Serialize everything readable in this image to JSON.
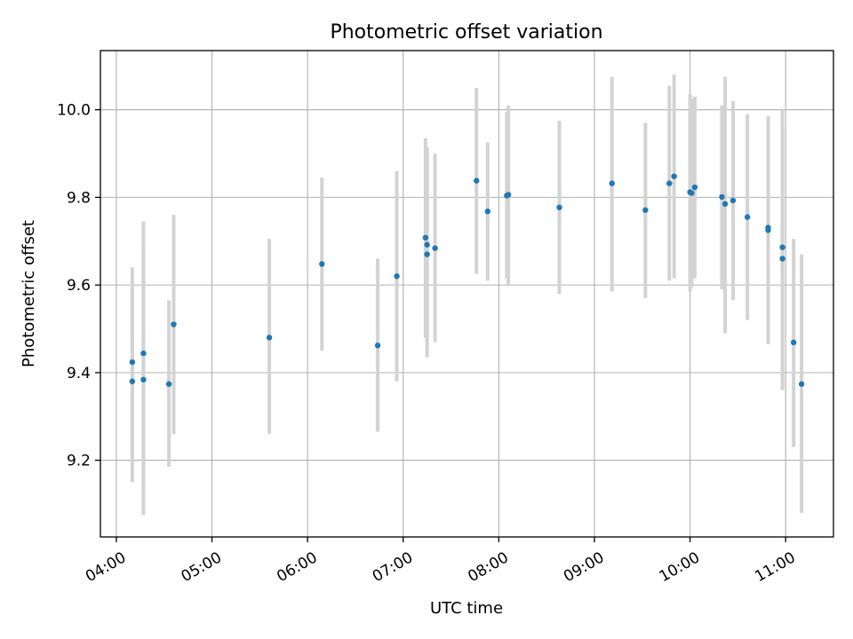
{
  "chart_data": {
    "type": "scatter",
    "title": "Photometric offset variation",
    "xlabel": "UTC time",
    "ylabel": "Photometric offset",
    "xlim": [
      "03:50",
      "11:30"
    ],
    "ylim": [
      9.025,
      10.135
    ],
    "xticks": [
      "04:00",
      "05:00",
      "06:00",
      "07:00",
      "08:00",
      "09:00",
      "10:00",
      "11:00"
    ],
    "yticks": [
      9.2,
      9.4,
      9.6,
      9.8,
      10.0
    ],
    "grid": true,
    "point_color": "#1f77b4",
    "errorbar_color": "#d3d3d3",
    "points": [
      {
        "x": "04:10",
        "y": 9.424,
        "ylow": 9.21,
        "yhigh": 9.64
      },
      {
        "x": "04:10",
        "y": 9.38,
        "ylow": 9.15,
        "yhigh": 9.61
      },
      {
        "x": "04:17",
        "y": 9.444,
        "ylow": 9.14,
        "yhigh": 9.745
      },
      {
        "x": "04:17",
        "y": 9.384,
        "ylow": 9.075,
        "yhigh": 9.69
      },
      {
        "x": "04:33",
        "y": 9.374,
        "ylow": 9.185,
        "yhigh": 9.565
      },
      {
        "x": "04:36",
        "y": 9.51,
        "ylow": 9.26,
        "yhigh": 9.76
      },
      {
        "x": "05:36",
        "y": 9.48,
        "ylow": 9.26,
        "yhigh": 9.705
      },
      {
        "x": "06:09",
        "y": 9.648,
        "ylow": 9.45,
        "yhigh": 9.845
      },
      {
        "x": "06:44",
        "y": 9.462,
        "ylow": 9.265,
        "yhigh": 9.66
      },
      {
        "x": "06:56",
        "y": 9.62,
        "ylow": 9.38,
        "yhigh": 9.86
      },
      {
        "x": "07:14",
        "y": 9.708,
        "ylow": 9.48,
        "yhigh": 9.935
      },
      {
        "x": "07:15",
        "y": 9.692,
        "ylow": 9.47,
        "yhigh": 9.915
      },
      {
        "x": "07:15",
        "y": 9.67,
        "ylow": 9.435,
        "yhigh": 9.905
      },
      {
        "x": "07:20",
        "y": 9.684,
        "ylow": 9.47,
        "yhigh": 9.9
      },
      {
        "x": "07:46",
        "y": 9.838,
        "ylow": 9.625,
        "yhigh": 10.05
      },
      {
        "x": "07:53",
        "y": 9.768,
        "ylow": 9.61,
        "yhigh": 9.925
      },
      {
        "x": "08:05",
        "y": 9.804,
        "ylow": 9.615,
        "yhigh": 9.995
      },
      {
        "x": "08:06",
        "y": 9.806,
        "ylow": 9.6,
        "yhigh": 10.01
      },
      {
        "x": "08:38",
        "y": 9.777,
        "ylow": 9.58,
        "yhigh": 9.975
      },
      {
        "x": "09:11",
        "y": 9.832,
        "ylow": 9.585,
        "yhigh": 10.075
      },
      {
        "x": "09:32",
        "y": 9.771,
        "ylow": 9.57,
        "yhigh": 9.97
      },
      {
        "x": "09:47",
        "y": 9.832,
        "ylow": 9.61,
        "yhigh": 10.055
      },
      {
        "x": "09:50",
        "y": 9.848,
        "ylow": 9.615,
        "yhigh": 10.08
      },
      {
        "x": "10:00",
        "y": 9.812,
        "ylow": 9.585,
        "yhigh": 10.035
      },
      {
        "x": "10:01",
        "y": 9.81,
        "ylow": 9.595,
        "yhigh": 10.025
      },
      {
        "x": "10:03",
        "y": 9.823,
        "ylow": 9.615,
        "yhigh": 10.03
      },
      {
        "x": "10:20",
        "y": 9.801,
        "ylow": 9.59,
        "yhigh": 10.01
      },
      {
        "x": "10:22",
        "y": 9.785,
        "ylow": 9.49,
        "yhigh": 10.075
      },
      {
        "x": "10:27",
        "y": 9.793,
        "ylow": 9.565,
        "yhigh": 10.02
      },
      {
        "x": "10:36",
        "y": 9.755,
        "ylow": 9.52,
        "yhigh": 9.99
      },
      {
        "x": "10:49",
        "y": 9.731,
        "ylow": 9.465,
        "yhigh": 9.985
      },
      {
        "x": "10:49",
        "y": 9.725,
        "ylow": 9.475,
        "yhigh": 9.97
      },
      {
        "x": "10:58",
        "y": 9.686,
        "ylow": 9.37,
        "yhigh": 10.0
      },
      {
        "x": "10:58",
        "y": 9.66,
        "ylow": 9.36,
        "yhigh": 9.96
      },
      {
        "x": "11:05",
        "y": 9.469,
        "ylow": 9.23,
        "yhigh": 9.705
      },
      {
        "x": "11:10",
        "y": 9.374,
        "ylow": 9.08,
        "yhigh": 9.67
      }
    ]
  }
}
